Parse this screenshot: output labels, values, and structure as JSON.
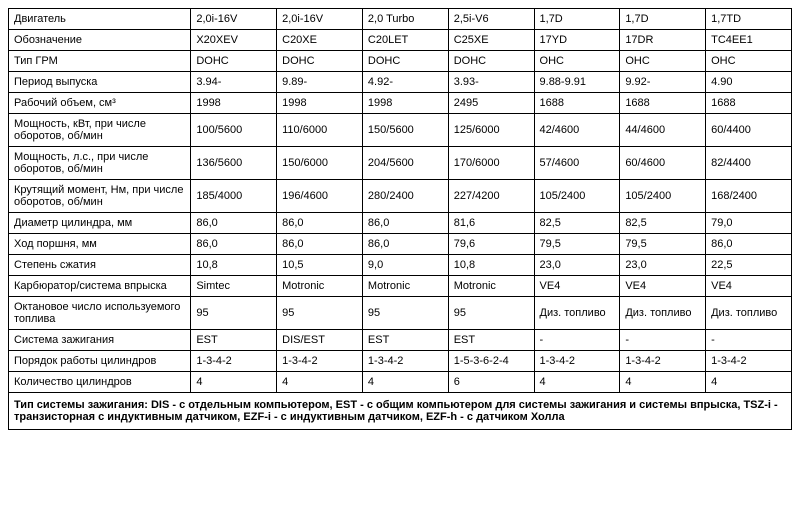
{
  "table": {
    "columns_count": 8,
    "col_widths": {
      "first": 170,
      "rest": 80
    },
    "border_color": "#000000",
    "background_color": "#ffffff",
    "text_color": "#000000",
    "font_size": 11,
    "rows": [
      {
        "label": "Двигатель",
        "cells": [
          "2,0i-16V",
          "2,0i-16V",
          "2,0 Turbo",
          "2,5i-V6",
          "1,7D",
          "1,7D",
          "1,7TD"
        ]
      },
      {
        "label": "Обозначение",
        "cells": [
          "X20XEV",
          "C20XE",
          "C20LET",
          "C25XE",
          "17YD",
          "17DR",
          "TC4EE1"
        ]
      },
      {
        "label": "Тип ГРМ",
        "cells": [
          "DOHC",
          "DOHC",
          "DOHC",
          "DOHC",
          "OHC",
          "OHC",
          "OHC"
        ]
      },
      {
        "label": "Период выпуска",
        "cells": [
          "3.94-",
          "9.89-",
          "4.92-",
          "3.93-",
          "9.88-9.91",
          "9.92-",
          "4.90"
        ]
      },
      {
        "label": "Рабочий объем, см³",
        "cells": [
          "1998",
          "1998",
          "1998",
          "2495",
          "1688",
          "1688",
          "1688"
        ]
      },
      {
        "label": "Мощность, кВт, при числе оборотов, об/мин",
        "cells": [
          "100/5600",
          "110/6000",
          "150/5600",
          "125/6000",
          "42/4600",
          "44/4600",
          "60/4400"
        ]
      },
      {
        "label": "Мощность, л.с., при числе оборотов, об/мин",
        "cells": [
          "136/5600",
          "150/6000",
          "204/5600",
          "170/6000",
          "57/4600",
          "60/4600",
          "82/4400"
        ]
      },
      {
        "label": "Крутящий момент, Нм, при числе оборотов, об/мин",
        "cells": [
          "185/4000",
          "196/4600",
          "280/2400",
          "227/4200",
          "105/2400",
          "105/2400",
          "168/2400"
        ]
      },
      {
        "label": "Диаметр цилиндра, мм",
        "cells": [
          "86,0",
          "86,0",
          "86,0",
          "81,6",
          "82,5",
          "82,5",
          "79,0"
        ]
      },
      {
        "label": "Ход поршня, мм",
        "cells": [
          "86,0",
          "86,0",
          "86,0",
          "79,6",
          "79,5",
          "79,5",
          "86,0"
        ]
      },
      {
        "label": "Степень сжатия",
        "cells": [
          "10,8",
          "10,5",
          "9,0",
          "10,8",
          "23,0",
          "23,0",
          "22,5"
        ]
      },
      {
        "label": "Карбюратор/система впрыска",
        "cells": [
          "Simtec",
          "Motronic",
          "Motronic",
          "Motronic",
          "VE4",
          "VE4",
          "VE4"
        ]
      },
      {
        "label": "Октановое число используемого топлива",
        "cells": [
          "95",
          "95",
          "95",
          "95",
          "Диз. топливо",
          "Диз. топливо",
          "Диз. топливо"
        ]
      },
      {
        "label": "Система зажигания",
        "cells": [
          "EST",
          "DIS/EST",
          "EST",
          "EST",
          "-",
          "-",
          "-"
        ]
      },
      {
        "label": "Порядок работы цилиндров",
        "cells": [
          "1-3-4-2",
          "1-3-4-2",
          "1-3-4-2",
          "1-5-3-6-2-4",
          "1-3-4-2",
          "1-3-4-2",
          "1-3-4-2"
        ]
      },
      {
        "label": "Количество цилиндров",
        "cells": [
          "4",
          "4",
          "4",
          "6",
          "4",
          "4",
          "4"
        ]
      }
    ],
    "footnote": "Тип системы зажигания: DIS - с отдельным компьютером, EST - с общим компьютером для системы зажигания и системы впрыска, TSZ-i - транзисторная с индуктивным датчиком, EZF-i - с индуктивным датчиком, EZF-h - с датчиком Холла"
  }
}
